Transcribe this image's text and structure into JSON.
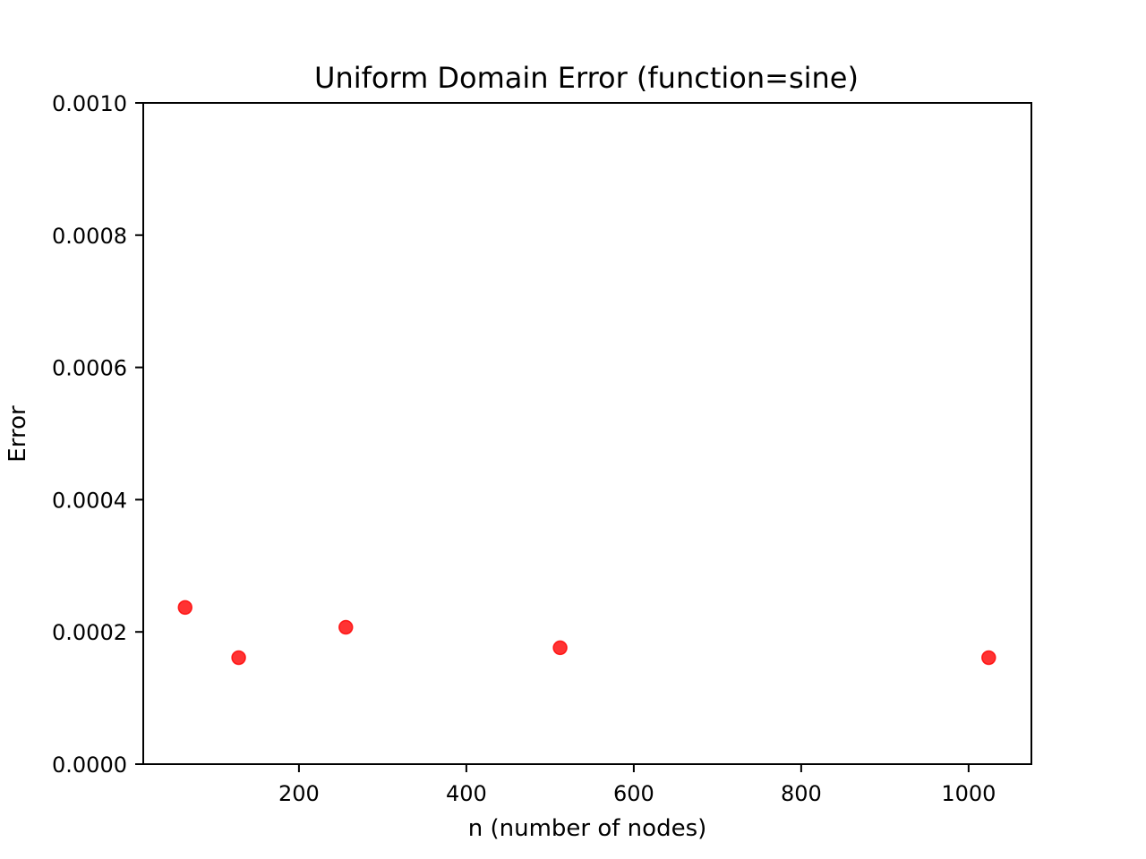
{
  "chart_data": {
    "type": "scatter",
    "title": "Uniform Domain Error (function=sine)",
    "xlabel": "n (number of nodes)",
    "ylabel": "Error",
    "xlim": [
      14,
      1075
    ],
    "ylim": [
      0,
      0.001
    ],
    "xticks": [
      {
        "value": 200,
        "label": "200"
      },
      {
        "value": 400,
        "label": "400"
      },
      {
        "value": 600,
        "label": "600"
      },
      {
        "value": 800,
        "label": "800"
      },
      {
        "value": 1000,
        "label": "1000"
      }
    ],
    "yticks": [
      {
        "value": 0,
        "label": "0.0000"
      },
      {
        "value": 0.0002,
        "label": "0.0002"
      },
      {
        "value": 0.0004,
        "label": "0.0004"
      },
      {
        "value": 0.0006,
        "label": "0.0006"
      },
      {
        "value": 0.0008,
        "label": "0.0008"
      },
      {
        "value": 0.001,
        "label": "0.0010"
      }
    ],
    "series": [
      {
        "color": "#ff0000",
        "points": [
          {
            "x": 64,
            "y": 0.000237
          },
          {
            "x": 128,
            "y": 0.000161
          },
          {
            "x": 256,
            "y": 0.000207
          },
          {
            "x": 512,
            "y": 0.000176
          },
          {
            "x": 1024,
            "y": 0.000161
          }
        ]
      }
    ],
    "grid": false,
    "legend": false
  }
}
